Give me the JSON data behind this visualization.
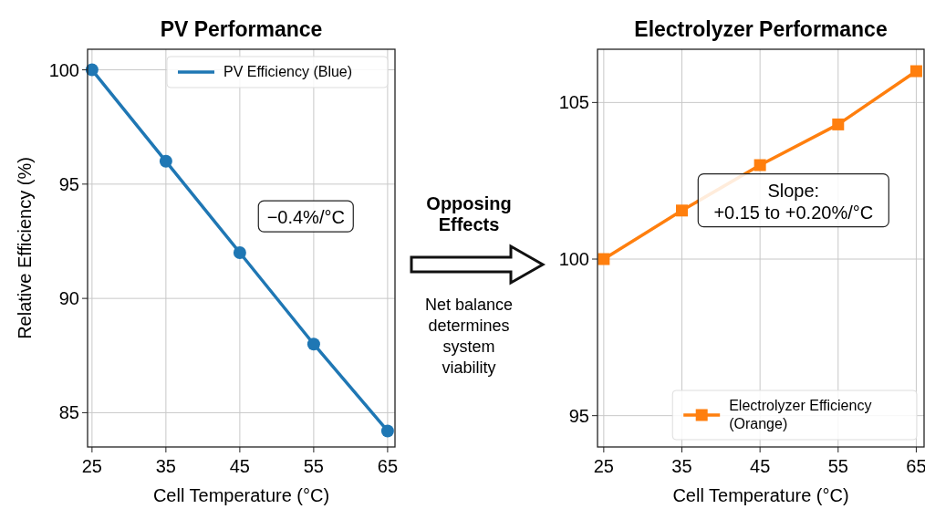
{
  "chart_data": [
    {
      "type": "line",
      "title": "PV Performance",
      "xlabel": "Cell Temperature (°C)",
      "ylabel": "Relative Efficiency (%)",
      "x": [
        25,
        35,
        45,
        55,
        65
      ],
      "series": [
        {
          "name": "PV Efficiency (Blue)",
          "color": "#1f77b4",
          "values": [
            100,
            96,
            92,
            88,
            84.2
          ]
        }
      ],
      "xlim": [
        24.4,
        66
      ],
      "xticks": [
        25,
        35,
        45,
        55,
        65
      ],
      "ylim": [
        83.5,
        100.9
      ],
      "yticks": [
        85,
        90,
        95,
        100
      ],
      "grid": true,
      "legend": "top right",
      "marker": "circle",
      "annotations": [
        "−0.4%/°C"
      ]
    },
    {
      "type": "other",
      "annotations": [
        "Opposing Effects",
        "Net balance determines system viability"
      ]
    },
    {
      "type": "line",
      "title": "Electrolyzer Performance",
      "xlabel": "Cell Temperature (°C)",
      "x": [
        25,
        35,
        45,
        55,
        65
      ],
      "series": [
        {
          "name": "Electrolyzer Efficiency (Orange)",
          "color": "#ff7f0e",
          "values": [
            100,
            101.55,
            103,
            104.3,
            106
          ]
        }
      ],
      "xlim": [
        24.2,
        66
      ],
      "xticks": [
        25,
        35,
        45,
        55,
        65
      ],
      "ylim": [
        94,
        106.7
      ],
      "yticks": [
        95,
        100,
        105
      ],
      "grid": true,
      "legend": "bottom right",
      "marker": "square",
      "annotations": [
        "Slope:\n+0.15 to +0.20%/°C"
      ]
    }
  ]
}
